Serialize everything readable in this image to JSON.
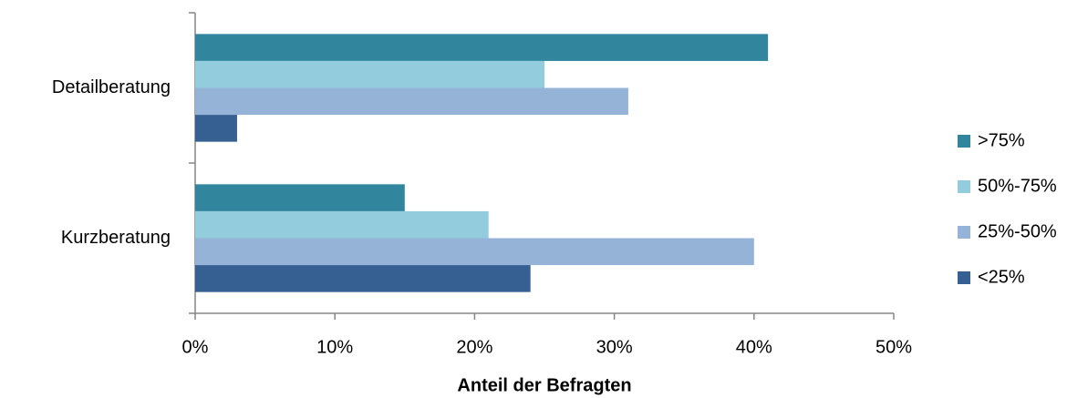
{
  "chart_data": {
    "type": "bar",
    "orientation": "horizontal",
    "xlabel": "Anteil der Befragten",
    "categories": [
      "Detailberatung",
      "Kurzberatung"
    ],
    "series": [
      {
        "name": ">75%",
        "color": "#31859c",
        "values": [
          41,
          15
        ]
      },
      {
        "name": "50%-75%",
        "color": "#93cddd",
        "values": [
          25,
          21
        ]
      },
      {
        "name": "25%-50%",
        "color": "#95b3d7",
        "values": [
          31,
          40
        ]
      },
      {
        "name": "<25%",
        "color": "#376092",
        "values": [
          3,
          24
        ]
      }
    ],
    "xlim": [
      0,
      50
    ],
    "xticks": [
      {
        "value": 0,
        "label": "0%"
      },
      {
        "value": 10,
        "label": "10%"
      },
      {
        "value": 20,
        "label": "20%"
      },
      {
        "value": 30,
        "label": "30%"
      },
      {
        "value": 40,
        "label": "40%"
      },
      {
        "value": 50,
        "label": "50%"
      }
    ],
    "legend": "right"
  }
}
